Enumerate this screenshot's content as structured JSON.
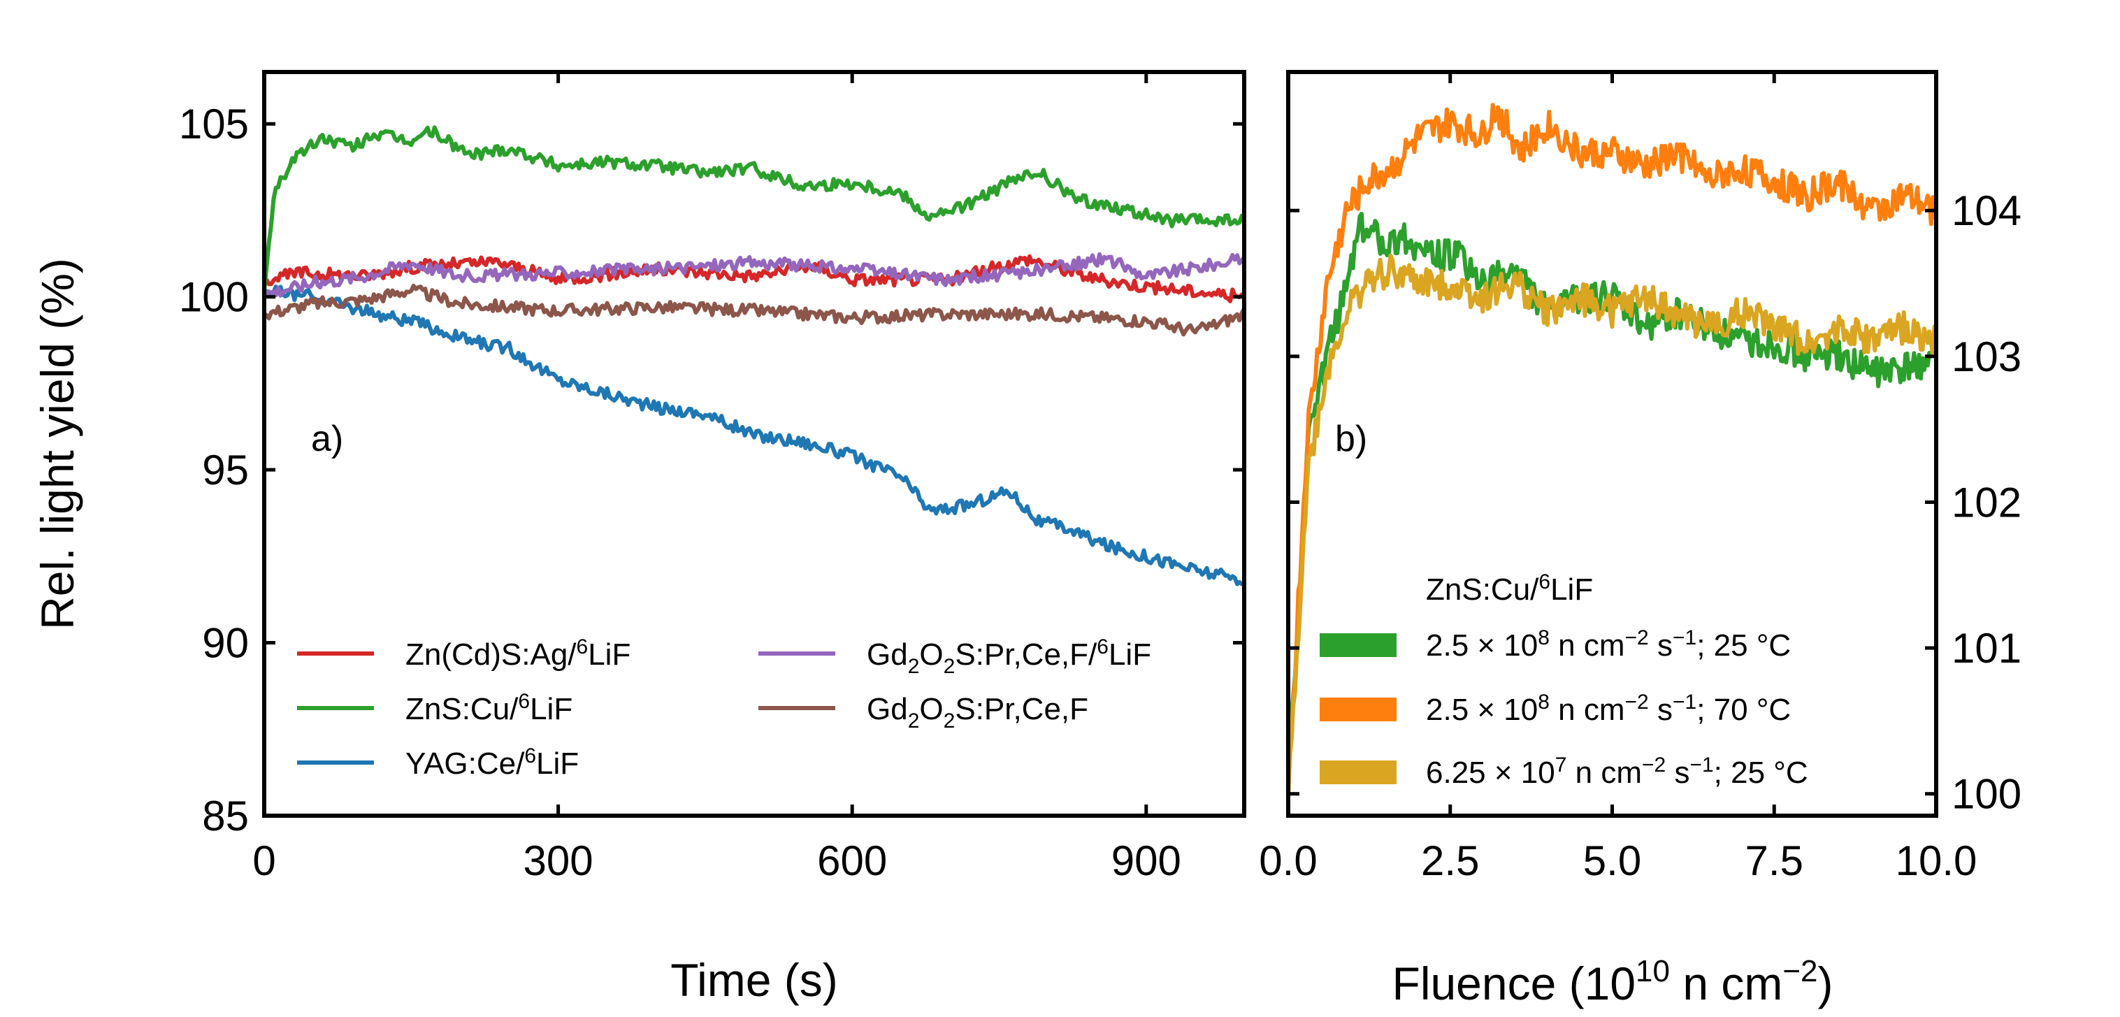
{
  "chart_data": [
    {
      "type": "line",
      "panel_label": "a)",
      "xlabel": "Time (s)",
      "ylabel": "Rel. light yield (%)",
      "xlim": [
        0,
        1000
      ],
      "ylim": [
        85,
        106.5
      ],
      "x_ticks": [
        0,
        300,
        600,
        900
      ],
      "x_tick_labels": [
        "0",
        "300",
        "600",
        "900"
      ],
      "y_ticks": [
        85,
        90,
        95,
        100,
        105
      ],
      "y_tick_labels": [
        "85",
        "90",
        "95",
        "100",
        "105"
      ],
      "legend_position": "bottom",
      "series": [
        {
          "name": "Zn(Cd)S:Ag/6LiF",
          "label_main": "Zn(Cd)S:Ag/",
          "label_sup": "6",
          "label_tail": "LiF",
          "color": "#d62728",
          "x": [
            0,
            40,
            100,
            160,
            240,
            300,
            400,
            500,
            560,
            600,
            700,
            780,
            850,
            900,
            1000
          ],
          "y": [
            100.5,
            100.7,
            100.6,
            100.9,
            101.0,
            100.5,
            100.8,
            100.6,
            100.9,
            100.5,
            100.5,
            101.1,
            100.5,
            100.3,
            100.0
          ]
        },
        {
          "name": "ZnS:Cu/6LiF",
          "label_main": "ZnS:Cu/",
          "label_sup": "6",
          "label_tail": "LiF",
          "color": "#2ca02c",
          "x": [
            0,
            10,
            30,
            60,
            90,
            110,
            150,
            170,
            210,
            250,
            300,
            350,
            400,
            450,
            500,
            550,
            600,
            650,
            680,
            720,
            760,
            790,
            830,
            870,
            920,
            1000
          ],
          "y": [
            100.2,
            103.0,
            104.0,
            104.6,
            104.3,
            104.7,
            104.5,
            104.8,
            104.1,
            104.3,
            103.8,
            103.9,
            103.8,
            103.6,
            103.7,
            103.2,
            103.3,
            103.0,
            102.3,
            102.7,
            103.3,
            103.6,
            102.8,
            102.6,
            102.2,
            102.2
          ]
        },
        {
          "name": "YAG:Ce/6LiF",
          "label_main": "YAG:Ce/",
          "label_sup": "6",
          "label_tail": "LiF",
          "color": "#1f77b4",
          "x": [
            0,
            50,
            100,
            150,
            200,
            250,
            300,
            350,
            400,
            450,
            500,
            550,
            600,
            650,
            680,
            720,
            760,
            790,
            820,
            860,
            900,
            950,
            1000
          ],
          "y": [
            100.2,
            100.0,
            99.6,
            99.3,
            98.8,
            98.5,
            97.6,
            97.2,
            96.8,
            96.6,
            96.0,
            95.8,
            95.4,
            94.8,
            93.8,
            94.0,
            94.4,
            93.5,
            93.3,
            92.8,
            92.5,
            92.1,
            91.8
          ]
        },
        {
          "name": "Gd2O2S:Pr,Ce,F/6LiF",
          "label_main": "Gd",
          "label_sub1": "2",
          "label_mid": "O",
          "label_sub2": "2",
          "label_tail": "S:Pr,Ce,F/",
          "label_sup": "6",
          "label_end": "LiF",
          "color": "#9467bd",
          "x": [
            0,
            50,
            100,
            150,
            200,
            300,
            400,
            500,
            600,
            700,
            800,
            860,
            900,
            1000
          ],
          "y": [
            100.1,
            100.4,
            100.6,
            101.0,
            100.6,
            100.7,
            100.8,
            101.0,
            100.8,
            100.5,
            100.8,
            101.1,
            100.6,
            101.1
          ]
        },
        {
          "name": "Gd2O2S:Pr,Ce,F",
          "label_main": "Gd",
          "label_sub1": "2",
          "label_mid": "O",
          "label_sub2": "2",
          "label_tail": "S:Pr,Ce,F",
          "color": "#8c564b",
          "x": [
            0,
            50,
            100,
            150,
            200,
            300,
            400,
            500,
            600,
            700,
            800,
            900,
            950,
            1000
          ],
          "y": [
            99.5,
            99.8,
            99.9,
            100.2,
            99.8,
            99.6,
            99.7,
            99.6,
            99.4,
            99.5,
            99.5,
            99.3,
            99.0,
            99.5
          ]
        }
      ]
    },
    {
      "type": "line",
      "panel_label": "b)",
      "xlabel": "Fluence (10^10 n cm^-2)",
      "xlabel_main": "Fluence (10",
      "xlabel_sup1": "10",
      "xlabel_mid": " n cm",
      "xlabel_sup2": "−2",
      "xlabel_end": ")",
      "ylabel": "",
      "xlim": [
        0,
        10
      ],
      "ylim": [
        99.85,
        104.95
      ],
      "x_ticks": [
        0,
        2.5,
        5,
        7.5,
        10
      ],
      "x_tick_labels": [
        "0.0",
        "2.5",
        "5.0",
        "7.5",
        "10.0"
      ],
      "y_ticks": [
        100,
        101,
        102,
        103,
        104
      ],
      "y_tick_labels": [
        "100",
        "101",
        "102",
        "103",
        "104"
      ],
      "legend_title": "ZnS:Cu/6LiF",
      "legend_title_main": "ZnS:Cu/",
      "legend_title_sup": "6",
      "legend_title_tail": "LiF",
      "legend_position": "bottom-right",
      "series": [
        {
          "name": "2.5 × 10^8 n cm^-2 s^-1; 25 °C",
          "lbl_a": "2.5 × 10",
          "lbl_exp": "8",
          "lbl_b": " n cm",
          "lbl_exp2": "−2",
          "lbl_c": " s",
          "lbl_exp3": "−1",
          "lbl_d": "; 25 °C",
          "color": "#2ca02c",
          "x": [
            0,
            0.3,
            0.6,
            0.9,
            1.1,
            1.4,
            1.8,
            2.2,
            2.6,
            3.0,
            3.5,
            4.0,
            4.5,
            5.0,
            5.5,
            6.0,
            6.5,
            7.0,
            7.5,
            8.0,
            8.5,
            9.0,
            9.5,
            10.0
          ],
          "y": [
            100.1,
            102.4,
            103.0,
            103.5,
            103.9,
            103.8,
            103.8,
            103.7,
            103.7,
            103.5,
            103.6,
            103.3,
            103.4,
            103.4,
            103.2,
            103.3,
            103.2,
            103.1,
            103.1,
            103.0,
            103.0,
            102.9,
            102.9,
            103.0
          ]
        },
        {
          "name": "2.5 × 10^8 n cm^-2 s^-1; 70 °C",
          "lbl_a": "2.5 × 10",
          "lbl_exp": "8",
          "lbl_b": " n cm",
          "lbl_exp2": "−2",
          "lbl_c": " s",
          "lbl_exp3": "−1",
          "lbl_d": "; 70 °C",
          "color": "#ff7f0e",
          "x": [
            0,
            0.3,
            0.6,
            0.9,
            1.2,
            1.6,
            2.0,
            2.5,
            3.0,
            3.2,
            3.6,
            4.0,
            4.5,
            5.0,
            5.5,
            6.0,
            6.5,
            7.0,
            7.5,
            8.0,
            8.5,
            9.0,
            9.5,
            10.0
          ],
          "y": [
            100.0,
            102.5,
            103.5,
            104.0,
            104.2,
            104.3,
            104.5,
            104.6,
            104.5,
            104.7,
            104.4,
            104.6,
            104.4,
            104.4,
            104.3,
            104.4,
            104.2,
            104.3,
            104.2,
            104.1,
            104.2,
            104.0,
            104.1,
            104.0
          ]
        },
        {
          "name": "6.25 × 10^7 n cm^-2 s^-1; 25 °C",
          "lbl_a": "6.25 × 10",
          "lbl_exp": "7",
          "lbl_b": " n cm",
          "lbl_exp2": "−2",
          "lbl_c": " s",
          "lbl_exp3": "−1",
          "lbl_d": "; 25 °C",
          "color": "#daa520",
          "x": [
            0,
            0.3,
            0.6,
            0.9,
            1.2,
            1.6,
            2.0,
            2.5,
            3.0,
            3.5,
            4.0,
            4.5,
            5.0,
            5.5,
            6.0,
            6.5,
            7.0,
            7.5,
            8.0,
            8.5,
            9.0,
            9.5,
            10.0
          ],
          "y": [
            100.0,
            102.2,
            102.9,
            103.3,
            103.5,
            103.6,
            103.5,
            103.5,
            103.4,
            103.5,
            103.3,
            103.4,
            103.3,
            103.4,
            103.3,
            103.2,
            103.3,
            103.2,
            103.1,
            103.2,
            103.1,
            103.2,
            103.1
          ]
        }
      ]
    }
  ]
}
